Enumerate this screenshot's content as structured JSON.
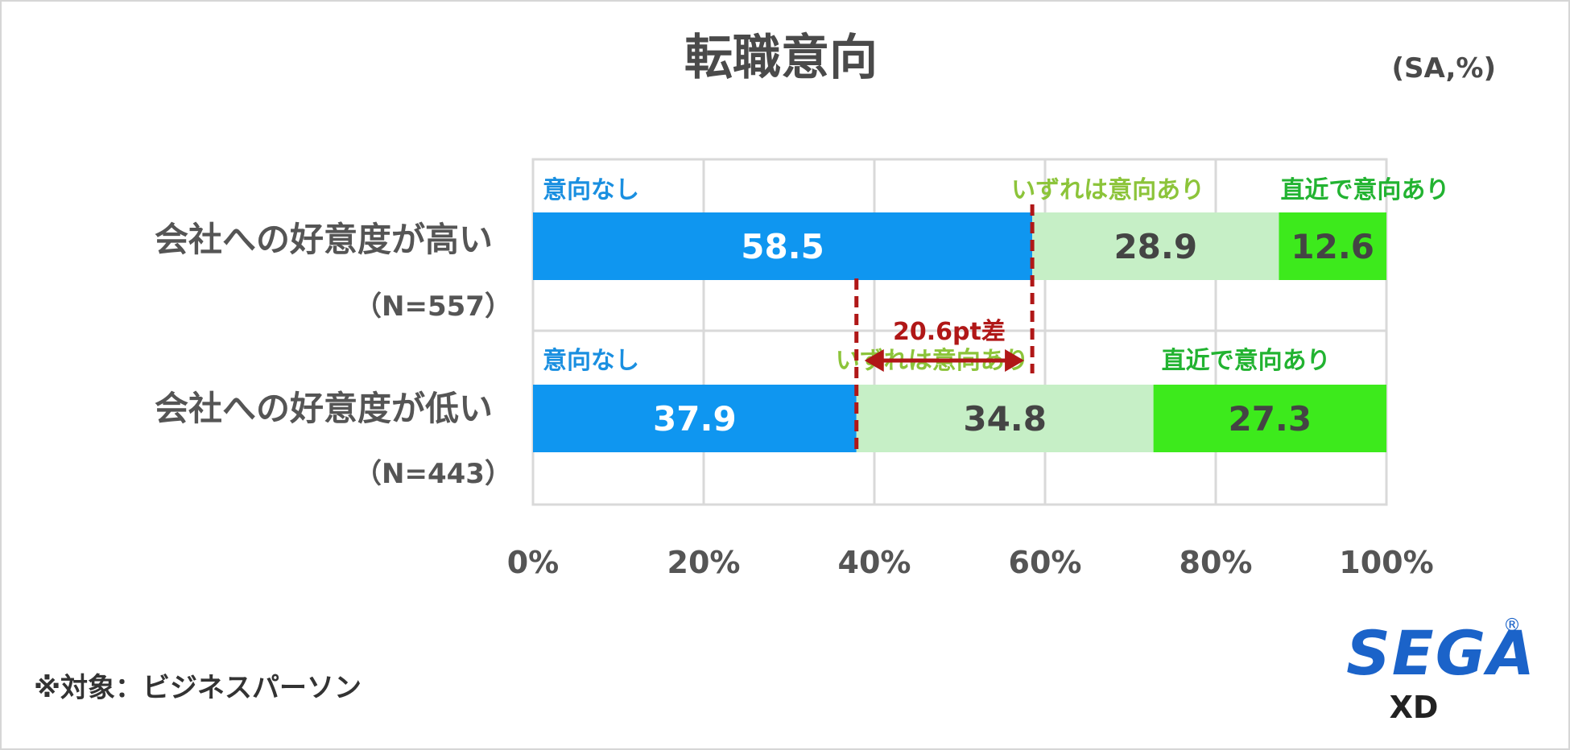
{
  "chart_data": {
    "type": "bar",
    "orientation": "horizontal",
    "stacked": true,
    "title": "転職意向",
    "unit_note": "(SA,%)",
    "categories": [
      {
        "label": "会社への好意度が高い",
        "n": "（N=557）"
      },
      {
        "label": "会社への好意度が低い",
        "n": "（N=443）"
      }
    ],
    "series": [
      {
        "name": "意向なし",
        "color": "#0f96f0",
        "values": [
          58.5,
          37.9
        ],
        "value_labels": [
          "58.5",
          "37.9"
        ],
        "text_color": "#ffffff"
      },
      {
        "name": "いずれは意向あり",
        "color": "#c6efc6",
        "values": [
          28.9,
          34.8
        ],
        "value_labels": [
          "28.9",
          "34.8"
        ],
        "text_color": "#444444"
      },
      {
        "name": "直近で意向あり",
        "color": "#3dea1c",
        "values": [
          12.6,
          27.3
        ],
        "value_labels": [
          "12.6",
          "27.3"
        ],
        "text_color": "#444444"
      }
    ],
    "series_label_colors": [
      "#1a8fe0",
      "#8cc43a",
      "#22b331"
    ],
    "xlim": [
      0,
      100
    ],
    "xticks": [
      "0%",
      "20%",
      "40%",
      "60%",
      "80%",
      "100%"
    ],
    "grid": true,
    "annotation": {
      "text": "20.6pt差",
      "from": 37.9,
      "to": 58.5,
      "color": "#b01717"
    }
  },
  "footnote": "※対象：ビジネスパーソン",
  "logo": {
    "main": "SEGA",
    "sub": "XD",
    "mark": "®"
  }
}
